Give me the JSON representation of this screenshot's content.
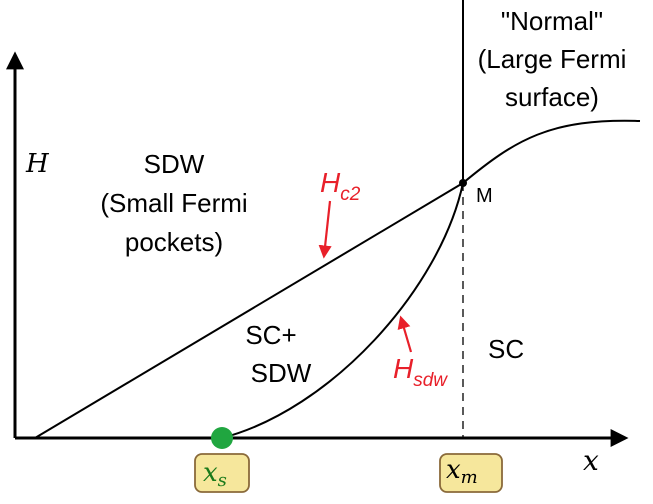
{
  "axes": {
    "y_label": "H",
    "x_label": "x"
  },
  "regions": {
    "normal": {
      "line1": "\"Normal\"",
      "line2": "(Large Fermi",
      "line3": "surface)"
    },
    "sdw": {
      "line1": "SDW",
      "line2": "(Small Fermi",
      "line3": "pockets)"
    },
    "sc_sdw": {
      "line1": "SC+",
      "line2": "SDW"
    },
    "sc": {
      "line1": "SC"
    }
  },
  "points": {
    "m": "M"
  },
  "curves": {
    "hc2": {
      "main": "H",
      "sub": "c2"
    },
    "hsdw": {
      "main": "H",
      "sub": "sdw"
    }
  },
  "markers": {
    "xs": {
      "main": "x",
      "sub": "s"
    },
    "xm": {
      "main": "x",
      "sub": "m"
    }
  },
  "colors": {
    "label_red": "#e8202a",
    "dot_green": "#20a640",
    "box_fill": "#f6e79c",
    "box_stroke": "#8a6a3a"
  }
}
